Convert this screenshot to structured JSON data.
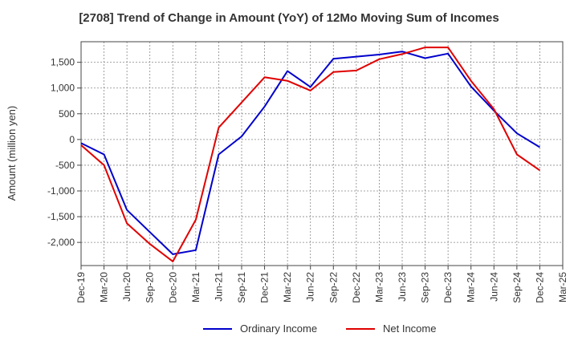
{
  "chart_data": {
    "type": "line",
    "title": "[2708]  Trend of Change in Amount (YoY) of 12Mo Moving Sum of Incomes",
    "ylabel": "Amount (million yen)",
    "xlabel": "",
    "ylim": [
      -2450,
      1900
    ],
    "yticks": [
      1500,
      1000,
      500,
      0,
      -500,
      -1000,
      -1500,
      -2000
    ],
    "ytick_labels": [
      "1,500",
      "1,000",
      "500",
      "0",
      "-500",
      "-1,000",
      "-1,500",
      "-2,000"
    ],
    "categories": [
      "Dec-19",
      "Mar-20",
      "Jun-20",
      "Sep-20",
      "Dec-20",
      "Mar-21",
      "Jun-21",
      "Sep-21",
      "Dec-21",
      "Mar-22",
      "Jun-22",
      "Sep-22",
      "Dec-22",
      "Mar-23",
      "Jun-23",
      "Sep-23",
      "Dec-23",
      "Mar-24",
      "Jun-24",
      "Sep-24",
      "Dec-24",
      "Mar-25"
    ],
    "grid": true,
    "legend_position": "bottom",
    "series": [
      {
        "name": "Ordinary Income",
        "color": "#0000cc",
        "values": [
          -70,
          -290,
          -1370,
          -1800,
          -2230,
          -2150,
          -290,
          60,
          640,
          1330,
          1020,
          1570,
          1610,
          1650,
          1710,
          1580,
          1670,
          1030,
          560,
          120,
          -150,
          null
        ]
      },
      {
        "name": "Net Income",
        "color": "#e00000",
        "values": [
          -110,
          -500,
          -1630,
          -2030,
          -2370,
          -1560,
          230,
          720,
          1210,
          1140,
          950,
          1310,
          1340,
          1560,
          1660,
          1790,
          1790,
          1140,
          590,
          -290,
          -600,
          null
        ]
      }
    ]
  }
}
